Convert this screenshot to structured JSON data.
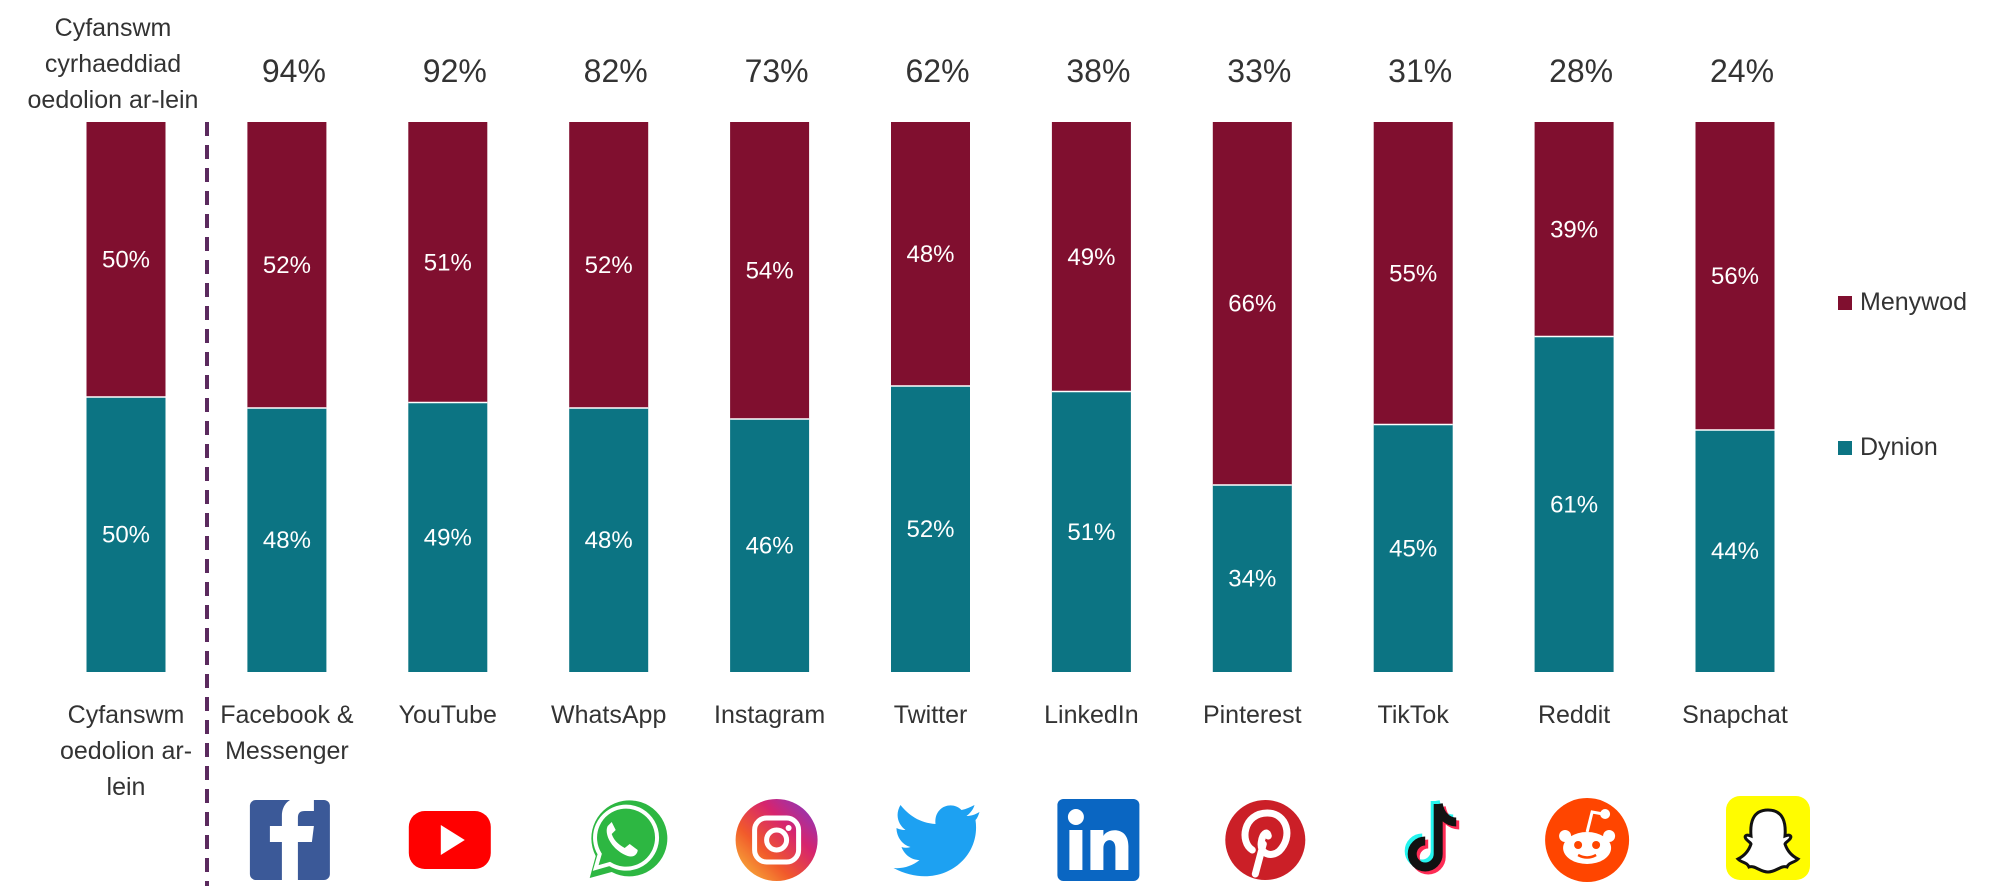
{
  "colors": {
    "women": "#800f2f",
    "men": "#0c7483",
    "divider": "#5b2a5e",
    "text": "#333333"
  },
  "reach_title_lines": [
    "Cyfanswm",
    "cyrhaeddiad",
    "oedolion ar-lein"
  ],
  "chart_data": {
    "type": "bar",
    "stacked": true,
    "percent_stacked": true,
    "categories": [
      [
        "Cyfanswm",
        "oedolion ar-",
        "lein"
      ],
      [
        "Facebook &",
        "Messenger"
      ],
      [
        "YouTube"
      ],
      [
        "WhatsApp"
      ],
      [
        "Instagram"
      ],
      [
        "Twitter"
      ],
      [
        "LinkedIn"
      ],
      [
        "Pinterest"
      ],
      [
        "TikTok"
      ],
      [
        "Reddit"
      ],
      [
        "Snapchat"
      ]
    ],
    "reach": [
      null,
      "94%",
      "92%",
      "82%",
      "73%",
      "62%",
      "38%",
      "33%",
      "31%",
      "28%",
      "24%"
    ],
    "series": [
      {
        "name": "Dynion",
        "values": [
          50,
          48,
          49,
          48,
          46,
          52,
          51,
          34,
          45,
          61,
          44
        ]
      },
      {
        "name": "Menywod",
        "values": [
          50,
          52,
          51,
          52,
          54,
          48,
          49,
          66,
          55,
          39,
          56
        ]
      }
    ],
    "ylim": [
      0,
      100
    ],
    "legend_position": "right",
    "icons": [
      null,
      "facebook-icon",
      "youtube-icon",
      "whatsapp-icon",
      "instagram-icon",
      "twitter-icon",
      "linkedin-icon",
      "pinterest-icon",
      "tiktok-icon",
      "reddit-icon",
      "snapchat-icon"
    ]
  }
}
